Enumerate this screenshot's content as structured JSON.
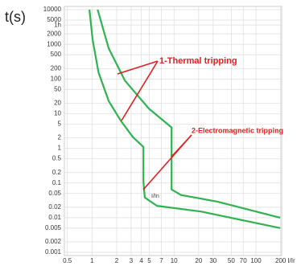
{
  "chart_data": {
    "type": "line",
    "y_label": "t(s)",
    "x_label": "I/Ir",
    "annotations": [
      "1-Thermal tripping",
      "2-Electromagnetic tripping",
      "I/In"
    ],
    "log_x": true,
    "log_y": true,
    "grid": true,
    "xlim": [
      0.46,
      206
    ],
    "ylim": [
      0.001,
      10000
    ],
    "xticks": [
      0.5,
      1,
      2,
      3,
      4,
      5,
      7,
      10,
      20,
      30,
      50,
      70,
      100,
      200
    ],
    "yticks": [
      10000,
      5000,
      {
        "value": 3600,
        "label": "1h"
      },
      2000,
      1000,
      500,
      200,
      100,
      50,
      20,
      10,
      5,
      2,
      1,
      0.5,
      0.2,
      0.1,
      0.05,
      0.02,
      0.01,
      0.005,
      0.002,
      0.001
    ],
    "series": [
      {
        "color": "#2fb350",
        "x": [
          0.93,
          1.02,
          1.2,
          1.6,
          2.25,
          3.16,
          4.24,
          4.24,
          4.4,
          6.2,
          21.6,
          198
        ],
        "values": [
          10000,
          1300,
          155,
          23,
          6.2,
          2.1,
          1.1,
          0.11,
          0.038,
          0.022,
          0.015,
          0.005
        ]
      },
      {
        "color": "#2fb350",
        "x": [
          1.17,
          1.6,
          2.52,
          4.96,
          9.35,
          9.35,
          12.2,
          33.8,
          198
        ],
        "values": [
          10000,
          760,
          90,
          13.8,
          4.0,
          0.065,
          0.045,
          0.029,
          0.01
        ]
      }
    ]
  }
}
